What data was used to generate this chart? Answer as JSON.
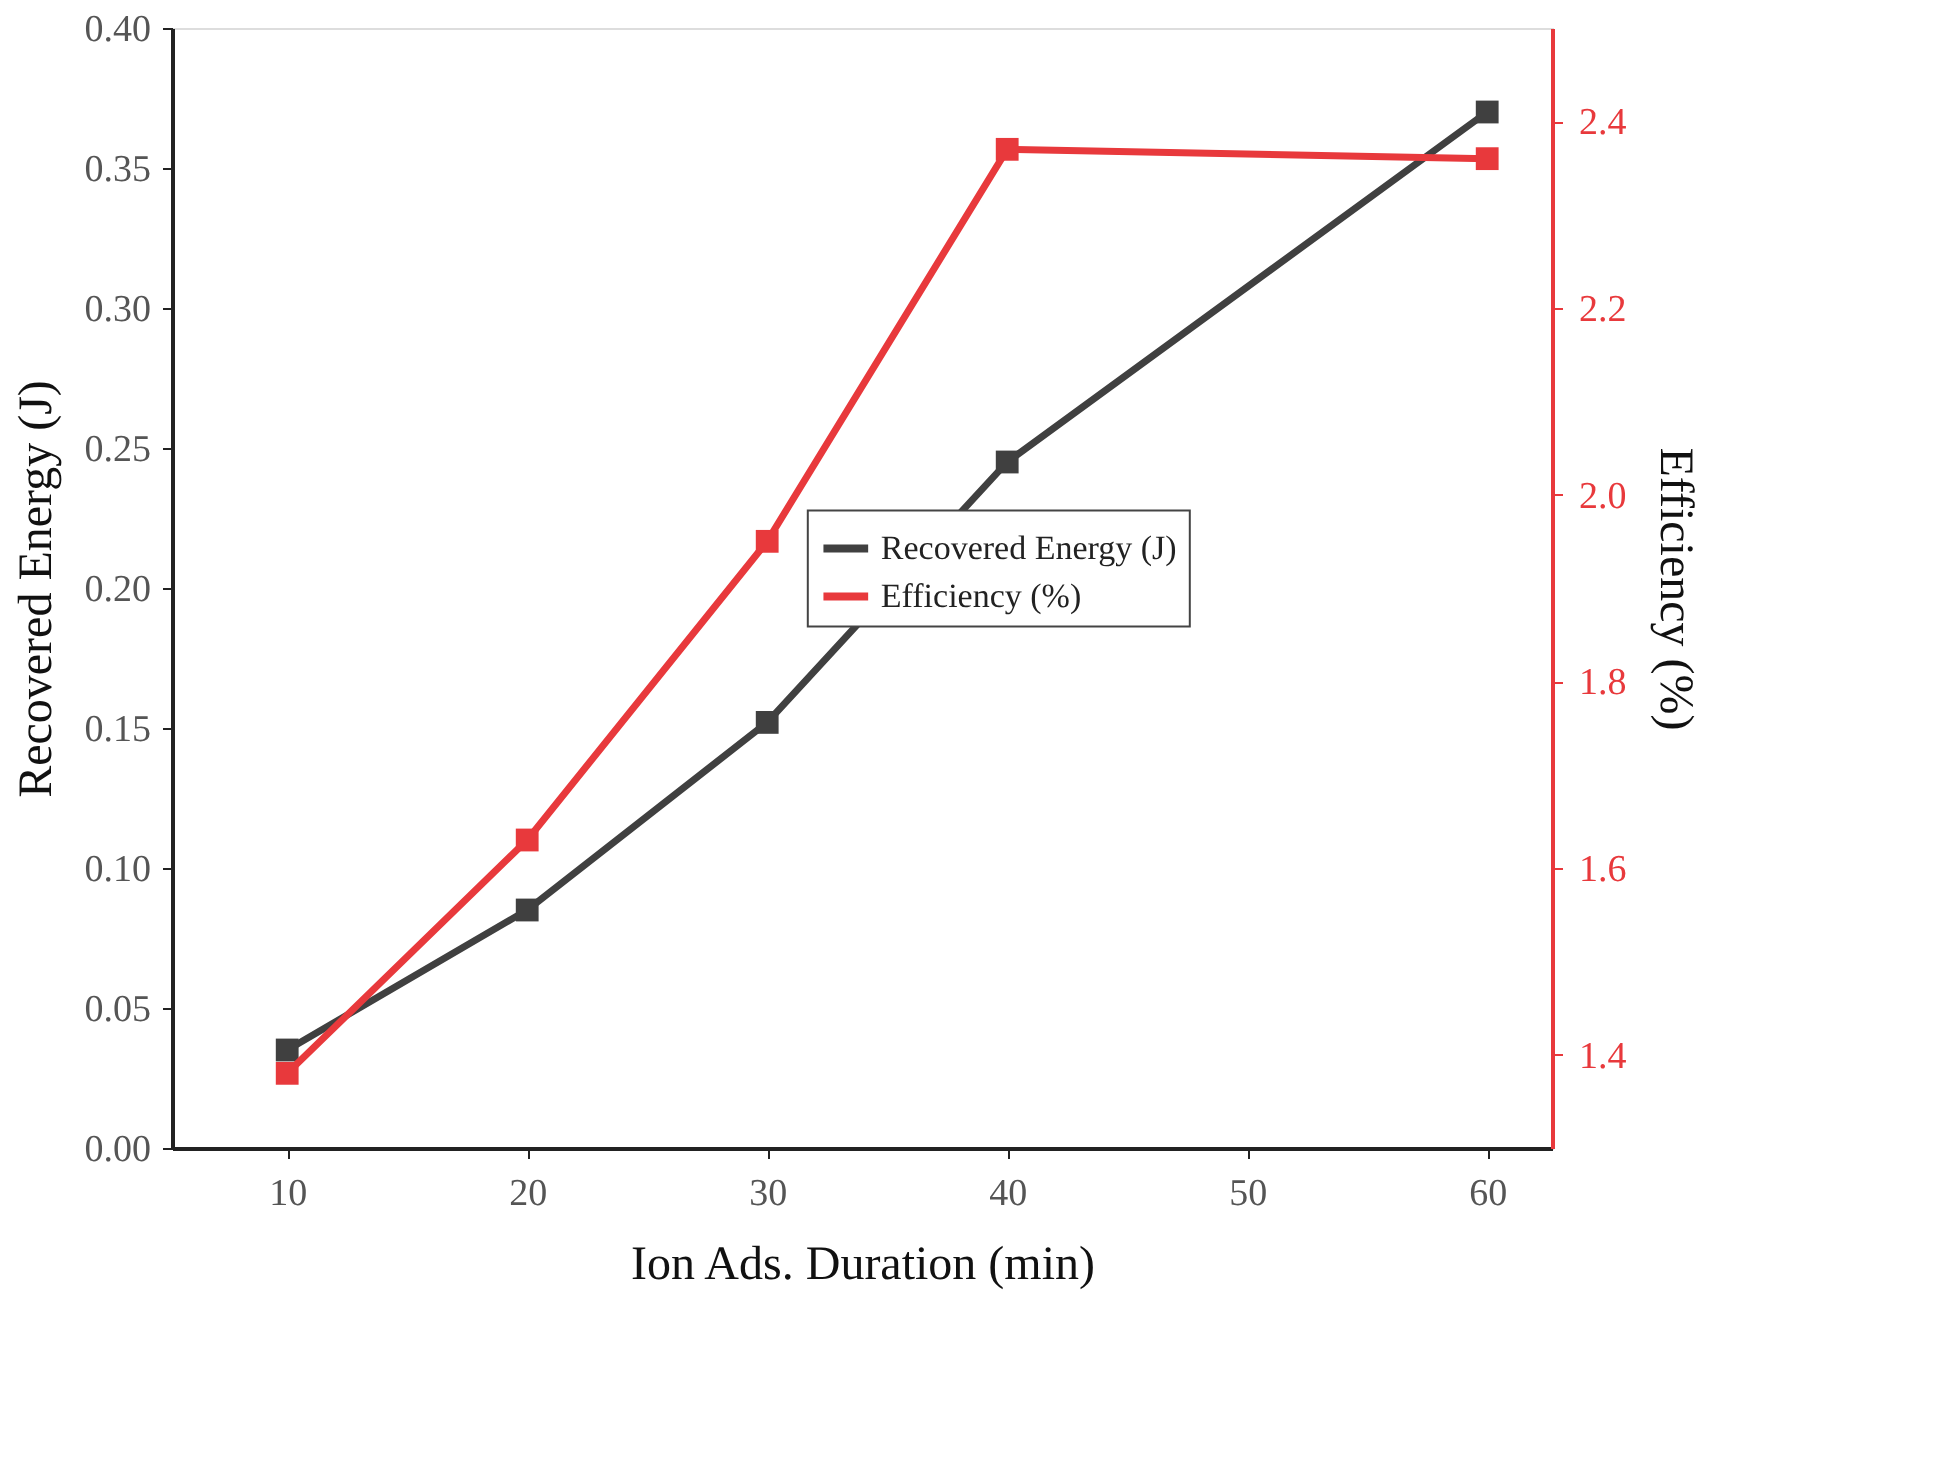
{
  "chart_data": {
    "type": "line",
    "xlabel": "Ion Ads. Duration (min)",
    "ylabel": "Recovered Energy (J)",
    "y2label": "Efficiency (%)",
    "x": [
      10,
      20,
      30,
      40,
      60
    ],
    "series": [
      {
        "name": "Recovered Energy (J)",
        "color": "#404040",
        "values": [
          0.035,
          0.085,
          0.152,
          0.245,
          0.37
        ]
      },
      {
        "name": "Efficiency (%)",
        "color": "#e8393c",
        "axis": "y2",
        "values": [
          1.38,
          1.63,
          1.95,
          2.37,
          2.36
        ]
      }
    ],
    "xlim": [
      5.2,
      62.7
    ],
    "xticks": [
      10,
      20,
      30,
      40,
      50,
      60
    ],
    "ylim": [
      0,
      0.4
    ],
    "yticks": [
      {
        "value": 0,
        "label": "0.00"
      },
      {
        "value": 0.05,
        "label": "0.05"
      },
      {
        "value": 0.1,
        "label": "0.10"
      },
      {
        "value": 0.15,
        "label": "0.15"
      },
      {
        "value": 0.2,
        "label": "0.20"
      },
      {
        "value": 0.25,
        "label": "0.25"
      },
      {
        "value": 0.3,
        "label": "0.30"
      },
      {
        "value": 0.35,
        "label": "0.35"
      },
      {
        "value": 0.4,
        "label": "0.40"
      }
    ],
    "y2lim": [
      1.3,
      2.5
    ],
    "y2ticks": [
      {
        "value": 1.4,
        "label": "1.4"
      },
      {
        "value": 1.6,
        "label": "1.6"
      },
      {
        "value": 1.8,
        "label": "1.8"
      },
      {
        "value": 2,
        "label": "2.0"
      },
      {
        "value": 2.2,
        "label": "2.2"
      },
      {
        "value": 2.4,
        "label": "2.4"
      }
    ],
    "grid": false,
    "legend": "center",
    "marker": "square",
    "line_style": "solid"
  }
}
